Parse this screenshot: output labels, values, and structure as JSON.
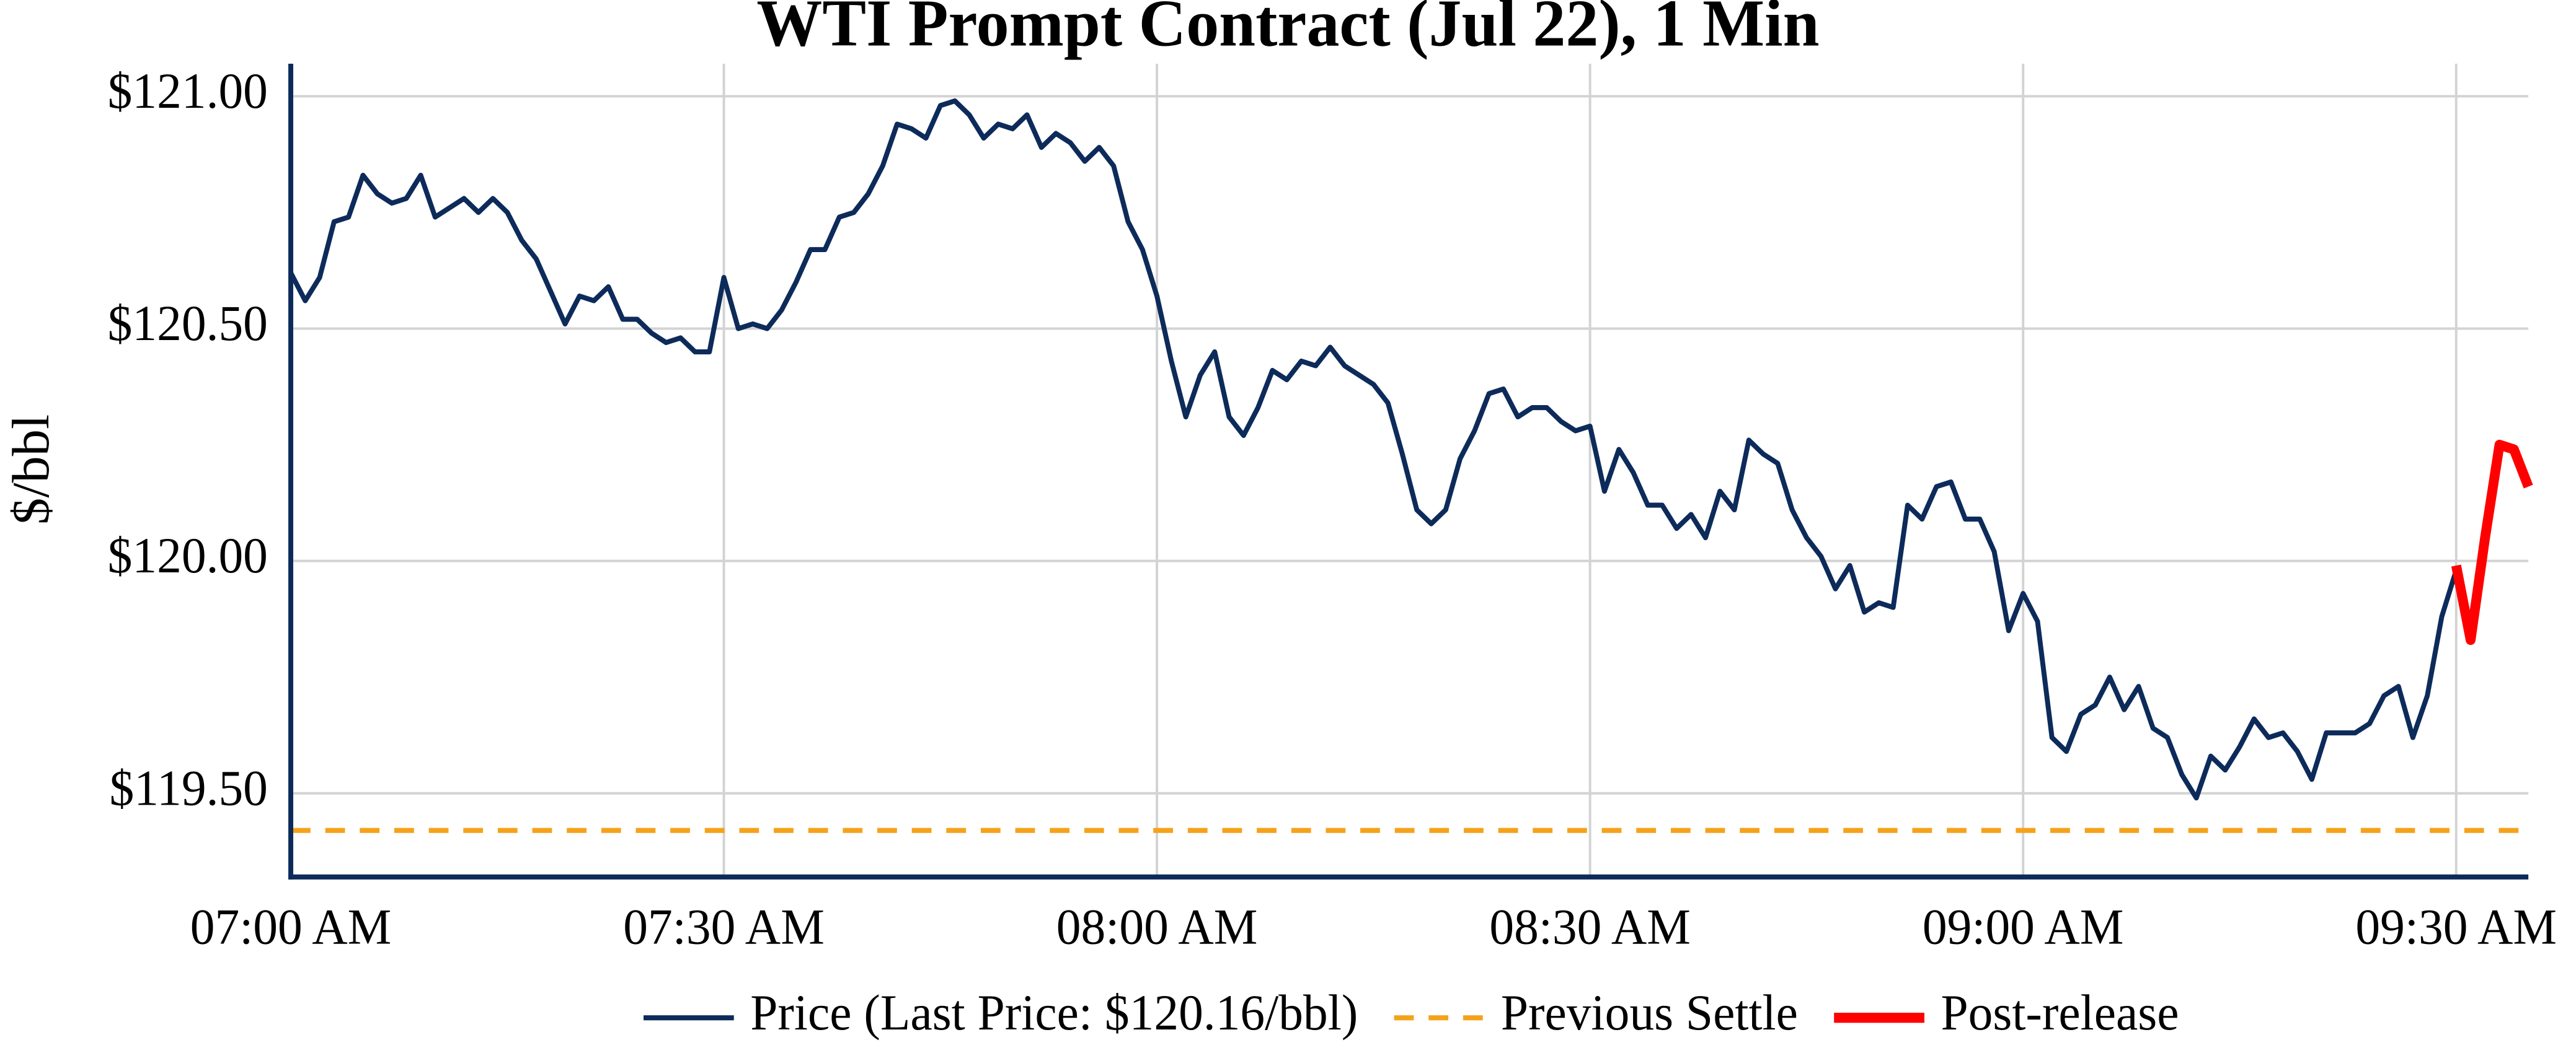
{
  "chart_data": {
    "type": "line",
    "title": "WTI Prompt Contract (Jul 22), 1 Min",
    "y_label": "$/bbl",
    "x": [
      "07:00 AM",
      "07:01 AM",
      "07:02 AM",
      "07:03 AM",
      "07:04 AM",
      "07:05 AM",
      "07:06 AM",
      "07:07 AM",
      "07:08 AM",
      "07:09 AM",
      "07:10 AM",
      "07:11 AM",
      "07:12 AM",
      "07:13 AM",
      "07:14 AM",
      "07:15 AM",
      "07:16 AM",
      "07:17 AM",
      "07:18 AM",
      "07:19 AM",
      "07:20 AM",
      "07:21 AM",
      "07:22 AM",
      "07:23 AM",
      "07:24 AM",
      "07:25 AM",
      "07:26 AM",
      "07:27 AM",
      "07:28 AM",
      "07:29 AM",
      "07:30 AM",
      "07:31 AM",
      "07:32 AM",
      "07:33 AM",
      "07:34 AM",
      "07:35 AM",
      "07:36 AM",
      "07:37 AM",
      "07:38 AM",
      "07:39 AM",
      "07:40 AM",
      "07:41 AM",
      "07:42 AM",
      "07:43 AM",
      "07:44 AM",
      "07:45 AM",
      "07:46 AM",
      "07:47 AM",
      "07:48 AM",
      "07:49 AM",
      "07:50 AM",
      "07:51 AM",
      "07:52 AM",
      "07:53 AM",
      "07:54 AM",
      "07:55 AM",
      "07:56 AM",
      "07:57 AM",
      "07:58 AM",
      "07:59 AM",
      "08:00 AM",
      "08:01 AM",
      "08:02 AM",
      "08:03 AM",
      "08:04 AM",
      "08:05 AM",
      "08:06 AM",
      "08:07 AM",
      "08:08 AM",
      "08:09 AM",
      "08:10 AM",
      "08:11 AM",
      "08:12 AM",
      "08:13 AM",
      "08:14 AM",
      "08:15 AM",
      "08:16 AM",
      "08:17 AM",
      "08:18 AM",
      "08:19 AM",
      "08:20 AM",
      "08:21 AM",
      "08:22 AM",
      "08:23 AM",
      "08:24 AM",
      "08:25 AM",
      "08:26 AM",
      "08:27 AM",
      "08:28 AM",
      "08:29 AM",
      "08:30 AM",
      "08:31 AM",
      "08:32 AM",
      "08:33 AM",
      "08:34 AM",
      "08:35 AM",
      "08:36 AM",
      "08:37 AM",
      "08:38 AM",
      "08:39 AM",
      "08:40 AM",
      "08:41 AM",
      "08:42 AM",
      "08:43 AM",
      "08:44 AM",
      "08:45 AM",
      "08:46 AM",
      "08:47 AM",
      "08:48 AM",
      "08:49 AM",
      "08:50 AM",
      "08:51 AM",
      "08:52 AM",
      "08:53 AM",
      "08:54 AM",
      "08:55 AM",
      "08:56 AM",
      "08:57 AM",
      "08:58 AM",
      "08:59 AM",
      "09:00 AM",
      "09:01 AM",
      "09:02 AM",
      "09:03 AM",
      "09:04 AM",
      "09:05 AM",
      "09:06 AM",
      "09:07 AM",
      "09:08 AM",
      "09:09 AM",
      "09:10 AM",
      "09:11 AM",
      "09:12 AM",
      "09:13 AM",
      "09:14 AM",
      "09:15 AM",
      "09:16 AM",
      "09:17 AM",
      "09:18 AM",
      "09:19 AM",
      "09:20 AM",
      "09:21 AM",
      "09:22 AM",
      "09:23 AM",
      "09:24 AM",
      "09:25 AM",
      "09:26 AM",
      "09:27 AM",
      "09:28 AM",
      "09:29 AM",
      "09:30 AM",
      "09:31 AM",
      "09:32 AM",
      "09:33 AM",
      "09:34 AM",
      "09:35 AM"
    ],
    "series": [
      {
        "name": "Price (Last Price: $120.16/bbl)",
        "color": "#0d2b5a",
        "values": [
          120.62,
          120.56,
          120.61,
          120.73,
          120.74,
          120.83,
          120.79,
          120.77,
          120.78,
          120.83,
          120.74,
          120.76,
          120.78,
          120.75,
          120.78,
          120.75,
          120.69,
          120.65,
          120.58,
          120.51,
          120.57,
          120.56,
          120.59,
          120.52,
          120.52,
          120.49,
          120.47,
          120.48,
          120.45,
          120.45,
          120.61,
          120.5,
          120.51,
          120.5,
          120.54,
          120.6,
          120.67,
          120.67,
          120.74,
          120.75,
          120.79,
          120.85,
          120.94,
          120.93,
          120.91,
          120.98,
          120.99,
          120.96,
          120.91,
          120.94,
          120.93,
          120.96,
          120.89,
          120.92,
          120.9,
          120.86,
          120.89,
          120.85,
          120.73,
          120.67,
          120.57,
          120.43,
          120.31,
          120.4,
          120.45,
          120.31,
          120.27,
          120.33,
          120.41,
          120.39,
          120.43,
          120.42,
          120.46,
          120.42,
          120.4,
          120.38,
          120.34,
          120.23,
          120.11,
          120.08,
          120.11,
          120.22,
          120.28,
          120.36,
          120.37,
          120.31,
          120.33,
          120.33,
          120.3,
          120.28,
          120.29,
          120.15,
          120.24,
          120.19,
          120.12,
          120.12,
          120.07,
          120.1,
          120.05,
          120.15,
          120.11,
          120.26,
          120.23,
          120.21,
          120.11,
          120.05,
          120.01,
          119.94,
          119.99,
          119.89,
          119.91,
          119.9,
          120.12,
          120.09,
          120.16,
          120.17,
          120.09,
          120.09,
          120.02,
          119.85,
          119.93,
          119.87,
          119.62,
          119.59,
          119.67,
          119.69,
          119.75,
          119.68,
          119.73,
          119.64,
          119.62,
          119.54,
          119.49,
          119.58,
          119.55,
          119.6,
          119.66,
          119.62,
          119.63,
          119.59,
          119.53,
          119.63,
          119.63,
          119.63,
          119.65,
          119.71,
          119.73,
          119.62,
          119.71,
          119.88,
          119.98,
          null,
          null,
          null,
          null,
          null
        ]
      },
      {
        "name": "Post-release",
        "color": "#ff0000",
        "values": [
          null,
          null,
          null,
          null,
          null,
          null,
          null,
          null,
          null,
          null,
          null,
          null,
          null,
          null,
          null,
          null,
          null,
          null,
          null,
          null,
          null,
          null,
          null,
          null,
          null,
          null,
          null,
          null,
          null,
          null,
          null,
          null,
          null,
          null,
          null,
          null,
          null,
          null,
          null,
          null,
          null,
          null,
          null,
          null,
          null,
          null,
          null,
          null,
          null,
          null,
          null,
          null,
          null,
          null,
          null,
          null,
          null,
          null,
          null,
          null,
          null,
          null,
          null,
          null,
          null,
          null,
          null,
          null,
          null,
          null,
          null,
          null,
          null,
          null,
          null,
          null,
          null,
          null,
          null,
          null,
          null,
          null,
          null,
          null,
          null,
          null,
          null,
          null,
          null,
          null,
          null,
          null,
          null,
          null,
          null,
          null,
          null,
          null,
          null,
          null,
          null,
          null,
          null,
          null,
          null,
          null,
          null,
          null,
          null,
          null,
          null,
          null,
          null,
          null,
          null,
          null,
          null,
          null,
          null,
          null,
          null,
          null,
          null,
          null,
          null,
          null,
          null,
          null,
          null,
          null,
          null,
          null,
          null,
          null,
          null,
          null,
          null,
          null,
          null,
          null,
          null,
          null,
          null,
          null,
          null,
          null,
          null,
          null,
          null,
          null,
          119.99,
          119.83,
          120.05,
          120.25,
          120.24,
          120.16
        ]
      }
    ],
    "reference_lines": [
      {
        "name": "Previous Settle",
        "value": 119.42,
        "color": "#f5a21b",
        "dashed": true
      }
    ],
    "xlim": [
      "07:00 AM",
      "09:35 AM"
    ],
    "xticks": [
      "07:00 AM",
      "07:30 AM",
      "08:00 AM",
      "08:30 AM",
      "09:00 AM",
      "09:30 AM"
    ],
    "ylim": [
      119.32,
      121.07
    ],
    "yticks": [
      {
        "value": 119.5,
        "label": "$119.50"
      },
      {
        "value": 120,
        "label": "$120.00"
      },
      {
        "value": 120.5,
        "label": "$120.50"
      },
      {
        "value": 121,
        "label": "$121.00"
      }
    ],
    "grid": true,
    "legend": "bottom",
    "axis_color": "#0d2b5a"
  }
}
